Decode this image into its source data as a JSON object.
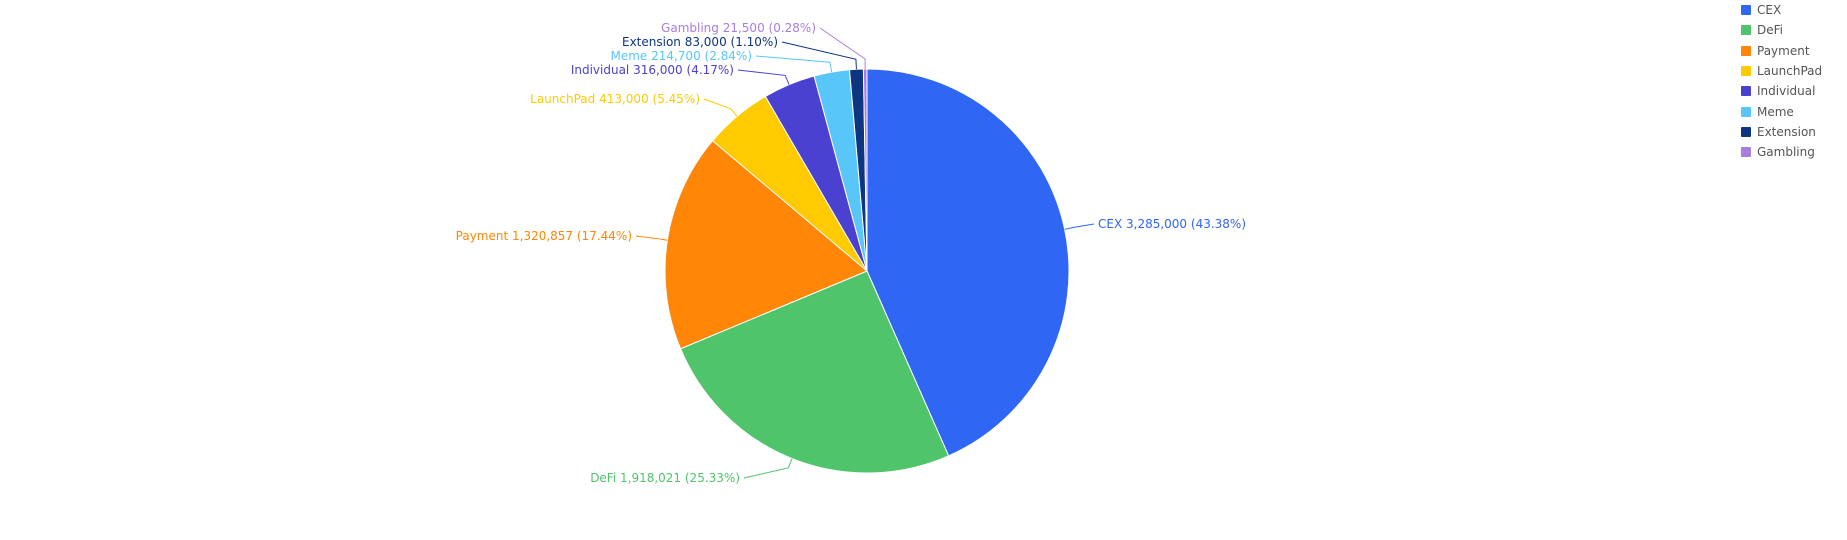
{
  "chart_data": {
    "type": "pie",
    "title": "",
    "slices": [
      {
        "name": "CEX",
        "value": 3285000,
        "value_label": "3,285,000",
        "percent_label": "43.38%",
        "color": "#2F66F3"
      },
      {
        "name": "DeFi",
        "value": 1918021,
        "value_label": "1,918,021",
        "percent_label": "25.33%",
        "color": "#4FC46A"
      },
      {
        "name": "Payment",
        "value": 1320857,
        "value_label": "1,320,857",
        "percent_label": "17.44%",
        "color": "#FF8607"
      },
      {
        "name": "LaunchPad",
        "value": 413000,
        "value_label": "413,000",
        "percent_label": "5.45%",
        "color": "#FFCA00"
      },
      {
        "name": "Individual",
        "value": 316000,
        "value_label": "316,000",
        "percent_label": "4.17%",
        "color": "#4B41D0"
      },
      {
        "name": "Meme",
        "value": 214700,
        "value_label": "214,700",
        "percent_label": "2.84%",
        "color": "#59C6F9"
      },
      {
        "name": "Extension",
        "value": 83000,
        "value_label": "83,000",
        "percent_label": "1.10%",
        "color": "#0D3580"
      },
      {
        "name": "Gambling",
        "value": 21500,
        "value_label": "21,500",
        "percent_label": "0.28%",
        "color": "#A97EE0"
      }
    ],
    "legend_position": "top-right"
  }
}
